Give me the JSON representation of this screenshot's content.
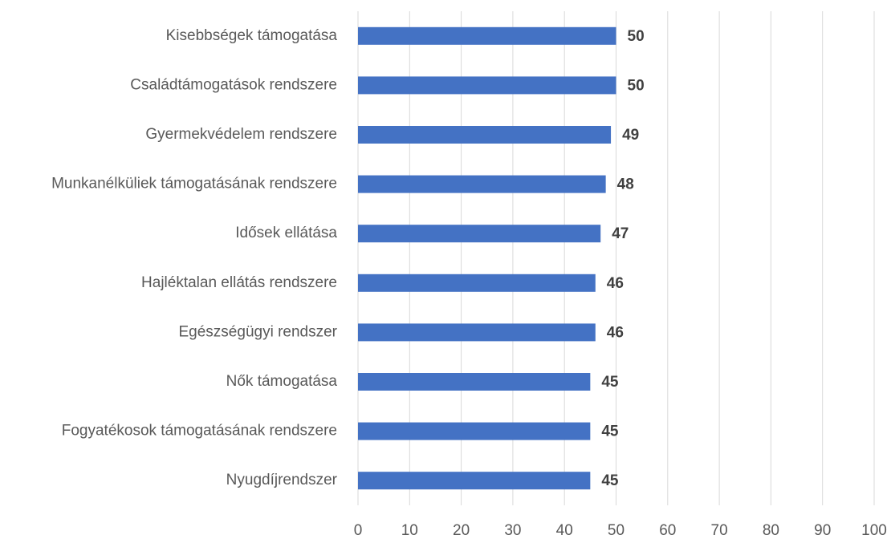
{
  "chart_data": {
    "type": "bar",
    "orientation": "horizontal",
    "categories": [
      "Kisebbségek támogatása",
      "Családtámogatások rendszere",
      "Gyermekvédelem rendszere",
      "Munkanélküliek támogatásának rendszere",
      "Idősek ellátása",
      "Hajléktalan ellátás rendszere",
      "Egészségügyi rendszer",
      "Nők támogatása",
      "Fogyatékosok támogatásának rendszere",
      "Nyugdíjrendszer"
    ],
    "values": [
      50,
      50,
      49,
      48,
      47,
      46,
      46,
      45,
      45,
      45
    ],
    "color": "#4472c4",
    "xlim": [
      0,
      100
    ],
    "xticks": [
      0,
      10,
      20,
      30,
      40,
      50,
      60,
      70,
      80,
      90,
      100
    ],
    "grid": true,
    "data_labels": true
  }
}
